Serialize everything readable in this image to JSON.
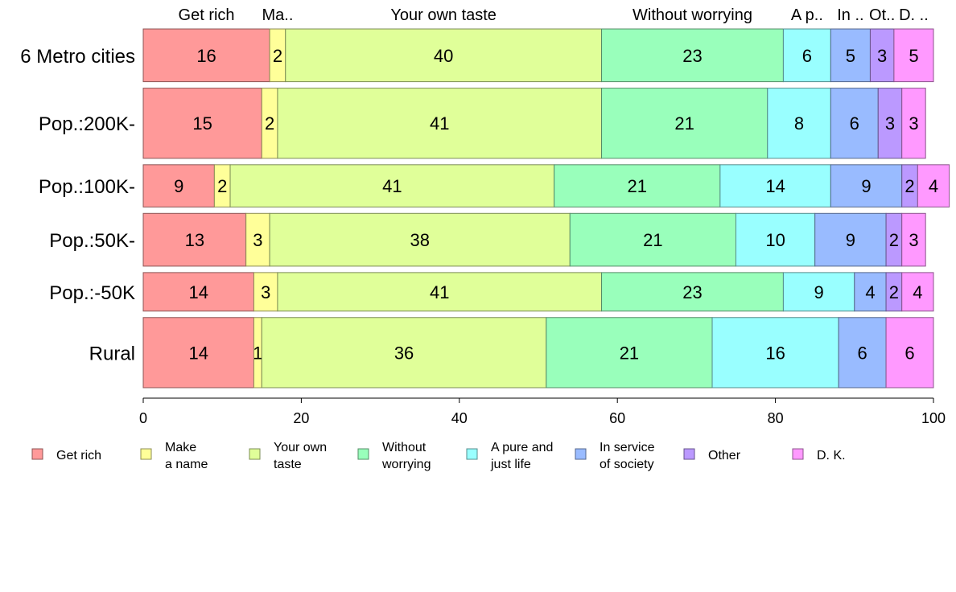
{
  "chart_data": {
    "type": "bar",
    "orientation": "horizontal",
    "stacked": true,
    "categories": [
      "6 Metro cities",
      "Pop.:200K-",
      "Pop.:100K-",
      "Pop.:50K-",
      "Pop.:-50K",
      "Rural"
    ],
    "relative_heights": [
      1.0,
      1.33,
      0.8,
      1.0,
      0.73,
      1.33
    ],
    "series": [
      {
        "name": "Get rich",
        "legend_lines": [
          "Get rich"
        ],
        "top_label": "Get rich",
        "color": "#ff9999",
        "values": [
          16,
          15,
          9,
          13,
          14,
          14
        ]
      },
      {
        "name": "Make a name",
        "legend_lines": [
          "Make",
          "a name"
        ],
        "top_label": "Ma..",
        "color": "#ffff99",
        "values": [
          2,
          2,
          2,
          3,
          3,
          1
        ]
      },
      {
        "name": "Your own taste",
        "legend_lines": [
          "Your own",
          "taste"
        ],
        "top_label": "Your own taste",
        "color": "#e0ff99",
        "values": [
          40,
          41,
          41,
          38,
          41,
          36
        ]
      },
      {
        "name": "Without worrying",
        "legend_lines": [
          "Without",
          "worrying"
        ],
        "top_label": "Without worrying",
        "color": "#99ffbb",
        "values": [
          23,
          21,
          21,
          21,
          23,
          21
        ]
      },
      {
        "name": "A pure and just life",
        "legend_lines": [
          "A pure and",
          "just life"
        ],
        "top_label": "A p..",
        "color": "#99ffff",
        "values": [
          6,
          8,
          14,
          10,
          9,
          16
        ]
      },
      {
        "name": "In service of society",
        "legend_lines": [
          "In service",
          "of society"
        ],
        "top_label": "In ..",
        "color": "#99bbff",
        "values": [
          5,
          6,
          9,
          9,
          4,
          6
        ]
      },
      {
        "name": "Other",
        "legend_lines": [
          "Other"
        ],
        "top_label": "Ot..",
        "color": "#bb99ff",
        "values": [
          3,
          3,
          2,
          2,
          2,
          0
        ]
      },
      {
        "name": "D. K.",
        "legend_lines": [
          "D. K."
        ],
        "top_label": "D. ..",
        "color": "#ff99ff",
        "values": [
          5,
          3,
          4,
          3,
          4,
          6
        ]
      }
    ],
    "xlim": [
      0,
      100
    ],
    "xticks": [
      0,
      20,
      40,
      60,
      80,
      100
    ],
    "grid": false,
    "legend_position": "bottom"
  }
}
